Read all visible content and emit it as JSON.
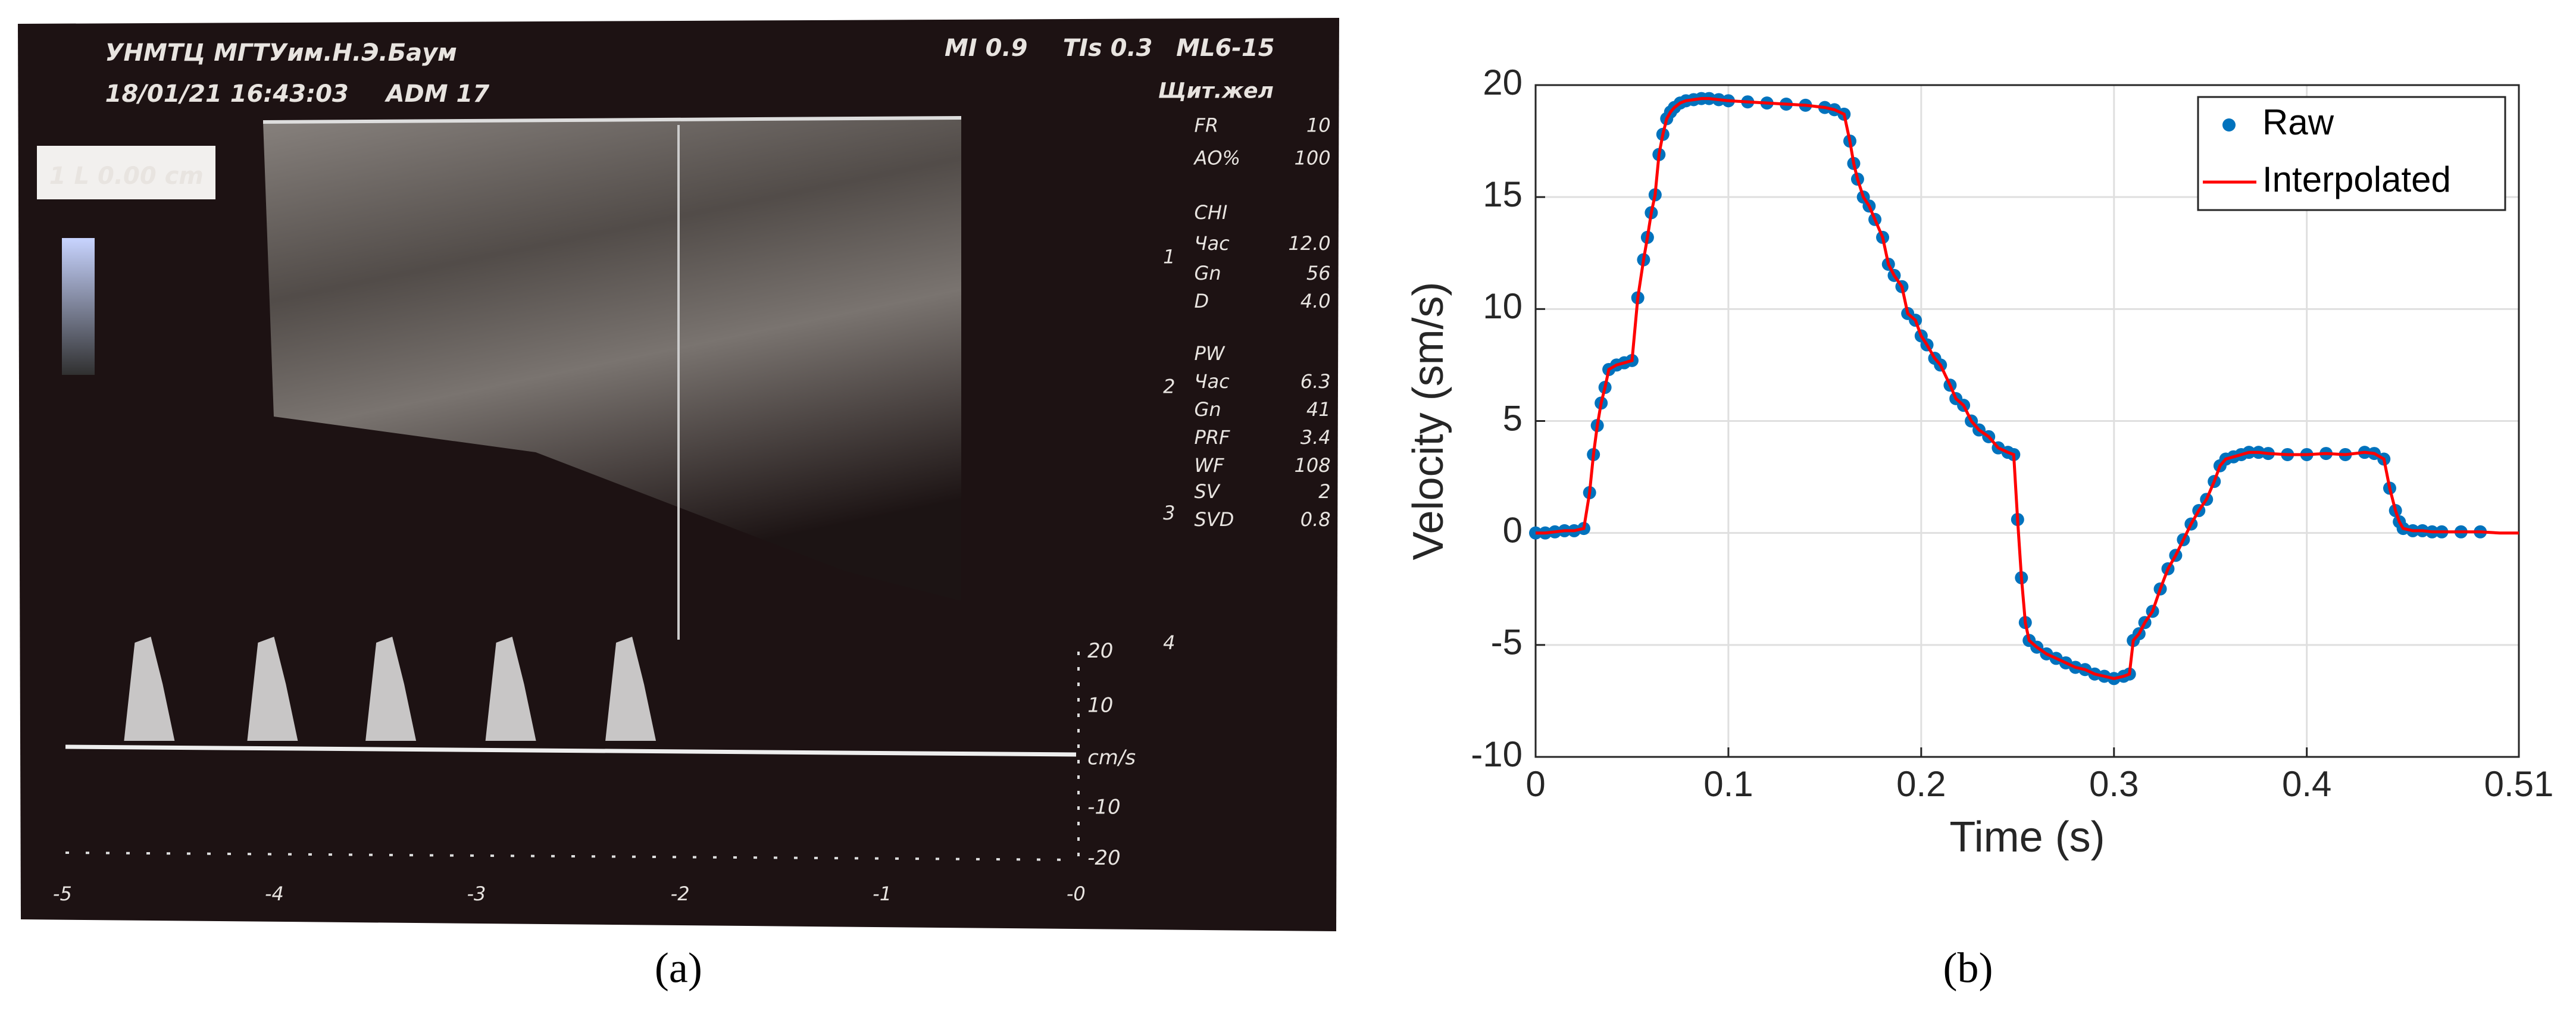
{
  "panel_labels": [
    "(a)",
    "(b)"
  ],
  "ultrasound": {
    "header": [
      "УНМТЦ МГТУим.Н.Э.Баум",
      "18/01/21 16:43:03",
      "ADM 17",
      "MI 0.9",
      "TIs 0.3",
      "ML6-15",
      "Щит.жел",
      "1 L 0.00 cm"
    ],
    "settings": [
      [
        "FR",
        "10"
      ],
      [
        "AO%",
        "100"
      ],
      [
        "CHI",
        ""
      ],
      [
        "Час",
        "12.0"
      ],
      [
        "Gn",
        "56"
      ],
      [
        "D",
        "4.0"
      ],
      [
        "PW",
        ""
      ],
      [
        "Час",
        "6.3"
      ],
      [
        "Gn",
        "41"
      ],
      [
        "PRF",
        "3.4"
      ],
      [
        "WF",
        "108"
      ],
      [
        "SV",
        "2"
      ],
      [
        "SVD",
        "0.8"
      ]
    ],
    "depth_labels": [
      "1",
      "2",
      "3",
      "4"
    ],
    "velocity_scale": [
      "20",
      "10",
      "cm/s",
      "-10",
      "-20"
    ],
    "time_scale": [
      "-5",
      "-4",
      "-3",
      "-2",
      "-1",
      "-0"
    ]
  },
  "chart_data": {
    "type": "line",
    "xlabel": "Time (s)",
    "ylabel": "Velocity (sm/s)",
    "xlim": [
      0,
      0.51
    ],
    "ylim": [
      -10,
      20
    ],
    "xticks": [
      0,
      0.1,
      0.2,
      0.3,
      0.4,
      0.51
    ],
    "yticks": [
      -10,
      -5,
      0,
      5,
      10,
      15,
      20
    ],
    "grid": true,
    "legend": "upper right",
    "x": [
      0,
      0.005,
      0.01,
      0.015,
      0.02,
      0.025,
      0.028,
      0.03,
      0.032,
      0.034,
      0.036,
      0.038,
      0.042,
      0.046,
      0.05,
      0.053,
      0.056,
      0.058,
      0.06,
      0.062,
      0.064,
      0.066,
      0.068,
      0.07,
      0.072,
      0.075,
      0.078,
      0.082,
      0.086,
      0.09,
      0.095,
      0.1,
      0.11,
      0.12,
      0.13,
      0.14,
      0.15,
      0.155,
      0.16,
      0.163,
      0.165,
      0.167,
      0.17,
      0.173,
      0.176,
      0.18,
      0.183,
      0.186,
      0.19,
      0.193,
      0.197,
      0.2,
      0.203,
      0.207,
      0.21,
      0.215,
      0.218,
      0.222,
      0.226,
      0.23,
      0.235,
      0.24,
      0.245,
      0.248,
      0.25,
      0.252,
      0.254,
      0.256,
      0.26,
      0.265,
      0.27,
      0.275,
      0.28,
      0.285,
      0.29,
      0.295,
      0.3,
      0.305,
      0.308,
      0.31,
      0.313,
      0.316,
      0.32,
      0.324,
      0.328,
      0.332,
      0.336,
      0.34,
      0.344,
      0.348,
      0.352,
      0.355,
      0.358,
      0.362,
      0.366,
      0.37,
      0.375,
      0.38,
      0.39,
      0.4,
      0.41,
      0.42,
      0.43,
      0.435,
      0.44,
      0.443,
      0.446,
      0.448,
      0.45,
      0.455,
      0.46,
      0.465,
      0.47,
      0.48,
      0.49,
      0.5,
      0.51
    ],
    "series": [
      {
        "name": "Raw",
        "color": "#0072bd",
        "mode": "markers",
        "values": [
          0,
          0,
          0.05,
          0.1,
          0.1,
          0.2,
          1.8,
          3.5,
          4.8,
          5.8,
          6.5,
          7.3,
          7.5,
          7.6,
          7.7,
          10.5,
          12.2,
          13.2,
          14.3,
          15.1,
          16.9,
          17.8,
          18.5,
          18.8,
          19.0,
          19.2,
          19.3,
          19.35,
          19.4,
          19.4,
          19.35,
          19.3,
          19.25,
          19.2,
          19.15,
          19.1,
          19.0,
          18.9,
          18.7,
          17.5,
          16.5,
          15.8,
          15.0,
          14.6,
          14.0,
          13.2,
          12.0,
          11.5,
          11.0,
          9.8,
          9.5,
          8.8,
          8.4,
          7.8,
          7.5,
          6.6,
          6.0,
          5.7,
          5.0,
          4.6,
          4.3,
          3.8,
          3.6,
          3.5,
          0.6,
          -2.0,
          -4.0,
          -4.8,
          -5.1,
          -5.4,
          -5.6,
          -5.8,
          -6.0,
          -6.1,
          -6.3,
          -6.4,
          -6.5,
          -6.4,
          -6.3,
          -4.8,
          -4.5,
          -4.0,
          -3.5,
          -2.5,
          -1.6,
          -1.0,
          -0.3,
          0.4,
          1.0,
          1.5,
          2.3,
          3.0,
          3.3,
          3.4,
          3.5,
          3.6,
          3.6,
          3.55,
          3.5,
          3.5,
          3.55,
          3.5,
          3.6,
          3.55,
          3.3,
          2.0,
          1.0,
          0.5,
          0.2,
          0.1,
          0.1,
          0.05,
          0.05,
          0.05,
          0.05,
          null,
          null
        ]
      },
      {
        "name": "Interpolated",
        "color": "#ff0000",
        "mode": "line",
        "values": [
          0,
          0,
          0.05,
          0.1,
          0.1,
          0.2,
          1.8,
          3.5,
          4.8,
          5.8,
          6.5,
          7.3,
          7.5,
          7.6,
          7.7,
          10.5,
          12.2,
          13.2,
          14.3,
          15.1,
          16.9,
          17.8,
          18.5,
          18.8,
          19.0,
          19.2,
          19.3,
          19.35,
          19.4,
          19.4,
          19.35,
          19.3,
          19.25,
          19.2,
          19.15,
          19.1,
          19.0,
          18.9,
          18.7,
          17.5,
          16.5,
          15.8,
          15.0,
          14.6,
          14.0,
          13.2,
          12.0,
          11.5,
          11.0,
          9.8,
          9.5,
          8.8,
          8.4,
          7.8,
          7.5,
          6.6,
          6.0,
          5.7,
          5.0,
          4.6,
          4.3,
          3.8,
          3.6,
          3.5,
          0.6,
          -2.0,
          -4.0,
          -4.8,
          -5.1,
          -5.4,
          -5.6,
          -5.8,
          -6.0,
          -6.1,
          -6.3,
          -6.4,
          -6.5,
          -6.4,
          -6.3,
          -4.8,
          -4.5,
          -4.0,
          -3.5,
          -2.5,
          -1.6,
          -1.0,
          -0.3,
          0.4,
          1.0,
          1.5,
          2.3,
          3.0,
          3.3,
          3.4,
          3.5,
          3.6,
          3.6,
          3.55,
          3.5,
          3.5,
          3.55,
          3.5,
          3.6,
          3.55,
          3.3,
          2.0,
          1.0,
          0.5,
          0.2,
          0.1,
          0.1,
          0.05,
          0.05,
          0.05,
          0.05,
          0,
          0
        ]
      }
    ]
  }
}
